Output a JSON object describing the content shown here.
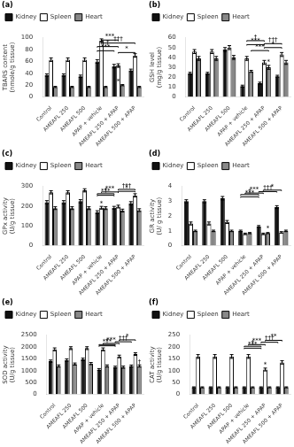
{
  "chart_data": [
    {
      "type": "bar",
      "title": "(a)",
      "ylabel": "TBARS content\n(nmole/g tissue)",
      "categories": [
        "Control",
        "AMEAFL 250",
        "AMEAFL 500",
        "APAP + vehicle",
        "AMEAFL 250 + APAP",
        "AMEAFL 500 + APAP"
      ],
      "series": [
        {
          "name": "Kidney",
          "color": "#111111",
          "values": [
            37,
            37,
            35,
            60,
            52,
            45
          ],
          "errors": [
            2,
            2,
            2,
            3,
            3,
            2
          ]
        },
        {
          "name": "Spleen",
          "color": "#ffffff",
          "values": [
            63,
            63,
            63,
            95,
            53,
            70
          ],
          "errors": [
            3,
            3,
            3,
            3,
            3,
            3
          ]
        },
        {
          "name": "Heart",
          "color": "#888888",
          "values": [
            17,
            17,
            17,
            17,
            20,
            17
          ],
          "errors": [
            1,
            1,
            1,
            1,
            1,
            1
          ]
        }
      ],
      "ylim": [
        0,
        100
      ],
      "yticks": [
        0,
        20,
        40,
        60,
        80,
        100
      ],
      "grid": false,
      "legend": "upper left",
      "annotations": [
        {
          "text": "***",
          "y": 96,
          "from": {
            "category": "APAP + vehicle",
            "series": "Spleen"
          },
          "to": {
            "category": "AMEAFL 250 + APAP",
            "series": "Spleen"
          }
        },
        {
          "text": "†",
          "y": 85,
          "from": {
            "category": "APAP + vehicle",
            "series": "Kidney"
          },
          "to": {
            "category": "AMEAFL 250 + APAP",
            "series": "Spleen"
          }
        },
        {
          "text": "***",
          "y": 78,
          "from": {
            "category": "APAP + vehicle",
            "series": "Kidney"
          },
          "to": {
            "category": "AMEAFL 250 + APAP",
            "series": "Kidney"
          }
        },
        {
          "text": "*",
          "y": 21,
          "at": {
            "category": "AMEAFL 250 + APAP",
            "series": "Spleen"
          }
        },
        {
          "text": "†††",
          "y": 91,
          "from": {
            "category": "APAP + vehicle",
            "series": "Spleen"
          },
          "to": {
            "category": "AMEAFL 500 + APAP",
            "series": "Spleen"
          }
        },
        {
          "text": "*",
          "y": 75,
          "from": {
            "category": "AMEAFL 250 + APAP",
            "series": "Spleen"
          },
          "to": {
            "category": "AMEAFL 500 + APAP",
            "series": "Spleen"
          }
        }
      ]
    },
    {
      "type": "bar",
      "title": "(b)",
      "ylabel": "GSH level\n(mg/g tissue)",
      "categories": [
        "Control",
        "AMEAFL 250",
        "AMEAFL 500",
        "APAP + vehicle",
        "AMEAFL 250 + APAP",
        "AMEAFL 500 + APAP"
      ],
      "series": [
        {
          "name": "Kidney",
          "color": "#111111",
          "values": [
            24,
            24,
            48,
            11,
            14,
            21
          ],
          "errors": [
            1,
            1,
            2,
            1,
            1,
            1
          ]
        },
        {
          "name": "Spleen",
          "color": "#ffffff",
          "values": [
            46,
            46,
            50,
            39,
            35,
            43
          ],
          "errors": [
            2,
            2,
            2,
            2,
            2,
            2
          ]
        },
        {
          "name": "Heart",
          "color": "#888888",
          "values": [
            39,
            39,
            40,
            26,
            30,
            35
          ],
          "errors": [
            2,
            2,
            2,
            1,
            2,
            2
          ]
        }
      ],
      "ylim": [
        0,
        60
      ],
      "yticks": [
        0,
        10,
        20,
        30,
        40,
        50,
        60
      ],
      "grid": false,
      "legend": "upper left",
      "annotations": [
        {
          "text": "***",
          "y": 53,
          "from": {
            "category": "APAP + vehicle",
            "series": "Spleen"
          },
          "to": {
            "category": "AMEAFL 250 + APAP",
            "series": "Spleen"
          }
        },
        {
          "text": "***",
          "y": 47,
          "from": {
            "category": "APAP + vehicle",
            "series": "Heart"
          },
          "to": {
            "category": "AMEAFL 250 + APAP",
            "series": "Heart"
          }
        },
        {
          "text": "†",
          "y": 57,
          "from": {
            "category": "APAP + vehicle",
            "series": "Spleen"
          },
          "to": {
            "category": "AMEAFL 250 + APAP",
            "series": "Spleen"
          }
        },
        {
          "text": "†††",
          "y": 54,
          "from": {
            "category": "AMEAFL 250 + APAP",
            "series": "Spleen"
          },
          "to": {
            "category": "AMEAFL 500 + APAP",
            "series": "Spleen"
          }
        },
        {
          "text": "*",
          "y": 50,
          "from": {
            "category": "AMEAFL 250 + APAP",
            "series": "Spleen"
          },
          "to": {
            "category": "AMEAFL 500 + APAP",
            "series": "Spleen"
          }
        },
        {
          "text": "*",
          "y": 32,
          "at": {
            "category": "AMEAFL 250 + APAP",
            "series": "Heart"
          }
        }
      ]
    },
    {
      "type": "bar",
      "title": "(c)",
      "ylabel": "GPx activity\n(U/g tissue)",
      "categories": [
        "Control",
        "AMEAFL 250",
        "AMEAFL 500",
        "APAP + vehicle",
        "AMEAFL 250 + APAP",
        "AMEAFL 500 + APAP"
      ],
      "series": [
        {
          "name": "Kidney",
          "color": "#111111",
          "values": [
            220,
            220,
            225,
            170,
            192,
            215
          ],
          "errors": [
            8,
            8,
            8,
            7,
            7,
            8
          ]
        },
        {
          "name": "Spleen",
          "color": "#ffffff",
          "values": [
            270,
            270,
            280,
            192,
            198,
            255
          ],
          "errors": [
            8,
            8,
            8,
            7,
            7,
            8
          ]
        },
        {
          "name": "Heart",
          "color": "#888888",
          "values": [
            190,
            190,
            190,
            190,
            178,
            180
          ],
          "errors": [
            7,
            7,
            7,
            7,
            7,
            7
          ]
        }
      ],
      "ylim": [
        0,
        300
      ],
      "yticks": [
        0,
        100,
        200,
        300
      ],
      "grid": false,
      "legend": "upper left",
      "annotations": [
        {
          "text": "***",
          "y": 255,
          "from": {
            "category": "APAP + vehicle",
            "series": "Kidney"
          },
          "to": {
            "category": "AMEAFL 250 + APAP",
            "series": "Kidney"
          }
        },
        {
          "text": "***",
          "y": 272,
          "from": {
            "category": "APAP + vehicle",
            "series": "Spleen"
          },
          "to": {
            "category": "AMEAFL 250 + APAP",
            "series": "Spleen"
          }
        },
        {
          "text": "*",
          "y": 198,
          "at": {
            "category": "APAP + vehicle",
            "series": "Spleen"
          }
        },
        {
          "text": "†",
          "y": 263,
          "from": {
            "category": "APAP + vehicle",
            "series": "Kidney"
          },
          "to": {
            "category": "AMEAFL 250 + APAP",
            "series": "Kidney"
          }
        },
        {
          "text": "†††",
          "y": 285,
          "from": {
            "category": "AMEAFL 250 + APAP",
            "series": "Spleen"
          },
          "to": {
            "category": "AMEAFL 500 + APAP",
            "series": "Spleen"
          }
        },
        {
          "text": "*",
          "y": 275,
          "from": {
            "category": "AMEAFL 250 + APAP",
            "series": "Spleen"
          },
          "to": {
            "category": "AMEAFL 500 + APAP",
            "series": "Spleen"
          }
        }
      ]
    },
    {
      "type": "bar",
      "title": "(d)",
      "ylabel": "GR activity\n(U/ g tissue)",
      "categories": [
        "Control",
        "AMEAFL 250",
        "AMEAFL 500",
        "APAP + vehicle",
        "AMEAFL 250 + APAP",
        "AMEAFL 500 + APAP"
      ],
      "series": [
        {
          "name": "Kidney",
          "color": "#111111",
          "values": [
            3.0,
            3.0,
            3.2,
            1.0,
            1.3,
            2.6
          ],
          "errors": [
            0.1,
            0.1,
            0.12,
            0.05,
            0.06,
            0.1
          ]
        },
        {
          "name": "Spleen",
          "color": "#ffffff",
          "values": [
            1.5,
            1.5,
            1.6,
            0.8,
            0.8,
            0.9
          ],
          "errors": [
            0.1,
            0.1,
            0.1,
            0.05,
            0.05,
            0.05
          ]
        },
        {
          "name": "Heart",
          "color": "#888888",
          "values": [
            1.0,
            1.0,
            1.0,
            0.85,
            0.85,
            1.0
          ],
          "errors": [
            0.05,
            0.05,
            0.05,
            0.04,
            0.04,
            0.05
          ]
        }
      ],
      "ylim": [
        0,
        4
      ],
      "yticks": [
        0,
        1,
        2,
        3,
        4
      ],
      "grid": false,
      "legend": "upper left",
      "annotations": [
        {
          "text": "***",
          "y": 3.3,
          "from": {
            "category": "APAP + vehicle",
            "series": "Kidney"
          },
          "to": {
            "category": "AMEAFL 250 + APAP",
            "series": "Kidney"
          }
        },
        {
          "text": "***",
          "y": 3.55,
          "from": {
            "category": "APAP + vehicle",
            "series": "Spleen"
          },
          "to": {
            "category": "AMEAFL 250 + APAP",
            "series": "Spleen"
          }
        },
        {
          "text": "†",
          "y": 3.45,
          "from": {
            "category": "APAP + vehicle",
            "series": "Kidney"
          },
          "to": {
            "category": "AMEAFL 250 + APAP",
            "series": "Kidney"
          }
        },
        {
          "text": "†††",
          "y": 3.65,
          "from": {
            "category": "AMEAFL 250 + APAP",
            "series": "Kidney"
          },
          "to": {
            "category": "AMEAFL 500 + APAP",
            "series": "Kidney"
          }
        },
        {
          "text": "*",
          "y": 3.75,
          "from": {
            "category": "AMEAFL 250 + APAP",
            "series": "Spleen"
          },
          "to": {
            "category": "AMEAFL 500 + APAP",
            "series": "Spleen"
          }
        },
        {
          "text": "*",
          "y": 0.98,
          "at": {
            "category": "AMEAFL 250 + APAP",
            "series": "Heart"
          }
        }
      ]
    },
    {
      "type": "bar",
      "title": "(e)",
      "ylabel": "SOD activity\n(U/g tissue)",
      "categories": [
        "Control",
        "AMEAFL 250",
        "AMEAFL 500",
        "APAP + vehicle",
        "AMEAFL 250 + APAP",
        "AMEAFL 500 + APAP"
      ],
      "series": [
        {
          "name": "Kidney",
          "color": "#111111",
          "values": [
            1400,
            1450,
            1480,
            1050,
            1150,
            1200
          ],
          "errors": [
            50,
            50,
            50,
            40,
            40,
            40
          ]
        },
        {
          "name": "Spleen",
          "color": "#ffffff",
          "values": [
            1900,
            1950,
            1950,
            1900,
            1600,
            1700
          ],
          "errors": [
            60,
            60,
            60,
            60,
            55,
            55
          ]
        },
        {
          "name": "Heart",
          "color": "#888888",
          "values": [
            1200,
            1280,
            1300,
            1200,
            1150,
            1200
          ],
          "errors": [
            45,
            45,
            45,
            45,
            45,
            45
          ]
        }
      ],
      "ylim": [
        0,
        2500
      ],
      "yticks": [
        0,
        500,
        1000,
        1500,
        2000,
        2500
      ],
      "grid": false,
      "legend": "upper left",
      "annotations": [
        {
          "text": "***",
          "y": 2050,
          "from": {
            "category": "APAP + vehicle",
            "series": "Kidney"
          },
          "to": {
            "category": "AMEAFL 250 + APAP",
            "series": "Kidney"
          }
        },
        {
          "text": "***",
          "y": 2150,
          "from": {
            "category": "APAP + vehicle",
            "series": "Spleen"
          },
          "to": {
            "category": "AMEAFL 250 + APAP",
            "series": "Spleen"
          }
        },
        {
          "text": "†",
          "y": 2100,
          "from": {
            "category": "APAP + vehicle",
            "series": "Kidney"
          },
          "to": {
            "category": "AMEAFL 250 + APAP",
            "series": "Kidney"
          }
        },
        {
          "text": "†††",
          "y": 2220,
          "from": {
            "category": "AMEAFL 250 + APAP",
            "series": "Kidney"
          },
          "to": {
            "category": "AMEAFL 500 + APAP",
            "series": "Kidney"
          }
        },
        {
          "text": "*",
          "y": 2300,
          "from": {
            "category": "AMEAFL 250 + APAP",
            "series": "Spleen"
          },
          "to": {
            "category": "AMEAFL 500 + APAP",
            "series": "Spleen"
          }
        },
        {
          "text": "†",
          "y": 1230,
          "at": {
            "category": "AMEAFL 500 + APAP",
            "series": "Heart"
          }
        }
      ]
    },
    {
      "type": "bar",
      "title": "(f)",
      "ylabel": "CAT activity\n(U/g tissue)",
      "categories": [
        "Control",
        "AMEAFL 250",
        "AMEAFL 500",
        "APAP + vehicle",
        "AMEAFL 250 + APAP",
        "AMEAFL 500 + APAP"
      ],
      "series": [
        {
          "name": "Kidney",
          "color": "#111111",
          "values": [
            30,
            30,
            30,
            30,
            30,
            30
          ],
          "errors": [
            2,
            2,
            2,
            2,
            2,
            2
          ]
        },
        {
          "name": "Spleen",
          "color": "#ffffff",
          "values": [
            160,
            160,
            160,
            160,
            105,
            135
          ],
          "errors": [
            8,
            8,
            8,
            8,
            6,
            7
          ]
        },
        {
          "name": "Heart",
          "color": "#888888",
          "values": [
            30,
            30,
            30,
            30,
            30,
            30
          ],
          "errors": [
            2,
            2,
            2,
            2,
            2,
            2
          ]
        }
      ],
      "ylim": [
        0,
        250
      ],
      "yticks": [
        0,
        50,
        100,
        150,
        200,
        250
      ],
      "grid": false,
      "legend": "upper left",
      "annotations": [
        {
          "text": "***",
          "y": 195,
          "from": {
            "category": "APAP + vehicle",
            "series": "Kidney"
          },
          "to": {
            "category": "AMEAFL 250 + APAP",
            "series": "Kidney"
          }
        },
        {
          "text": "***",
          "y": 210,
          "from": {
            "category": "APAP + vehicle",
            "series": "Spleen"
          },
          "to": {
            "category": "AMEAFL 250 + APAP",
            "series": "Spleen"
          }
        },
        {
          "text": "†",
          "y": 203,
          "from": {
            "category": "APAP + vehicle",
            "series": "Kidney"
          },
          "to": {
            "category": "AMEAFL 250 + APAP",
            "series": "Kidney"
          }
        },
        {
          "text": "†††",
          "y": 220,
          "from": {
            "category": "AMEAFL 250 + APAP",
            "series": "Kidney"
          },
          "to": {
            "category": "AMEAFL 500 + APAP",
            "series": "Kidney"
          }
        },
        {
          "text": "**",
          "y": 228,
          "from": {
            "category": "AMEAFL 250 + APAP",
            "series": "Spleen"
          },
          "to": {
            "category": "AMEAFL 500 + APAP",
            "series": "Spleen"
          }
        },
        {
          "text": "*",
          "y": 112,
          "at": {
            "category": "AMEAFL 250 + APAP",
            "series": "Spleen"
          }
        }
      ]
    }
  ]
}
